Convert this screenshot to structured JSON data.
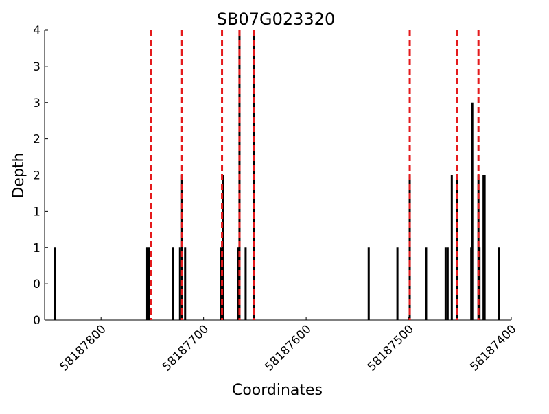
{
  "chart_data": {
    "type": "bar",
    "title": "SB07G023320",
    "x_label": "Coordinates",
    "y_label": "Depth",
    "color": "#000000",
    "x": [
      58187845,
      58187755,
      58187753,
      58187730,
      58187723,
      58187721,
      58187718,
      58187683,
      58187681,
      58187666,
      58187665,
      58187659,
      58187651,
      58187539,
      58187511,
      58187499,
      58187483,
      58187464,
      58187462,
      58187458,
      58187453,
      58187439,
      58187438,
      58187432,
      58187431,
      58187427,
      58187426,
      58187412
    ],
    "values": [
      1,
      1,
      1,
      1,
      1,
      2,
      1,
      1,
      2,
      1,
      4,
      1,
      4,
      1,
      1,
      2,
      1,
      1,
      1,
      2,
      2,
      1,
      3,
      2,
      1,
      2,
      2,
      1
    ],
    "vlines": {
      "color": "#e41a1c",
      "x": [
        58187751,
        58187721,
        58187682,
        58187665,
        58187651,
        58187499,
        58187453,
        58187432
      ]
    },
    "xlim": [
      58187855,
      58187400
    ],
    "xticks": [
      58187800,
      58187700,
      58187600,
      58187500,
      58187400
    ],
    "ylim": [
      0,
      4
    ],
    "yticks": [
      0,
      {
        "value": 0.5,
        "label": "0"
      },
      1,
      {
        "value": 1.5,
        "label": "1"
      },
      2,
      {
        "value": 2.5,
        "label": "2"
      },
      3,
      {
        "value": 3.5,
        "label": "3"
      },
      4
    ]
  }
}
